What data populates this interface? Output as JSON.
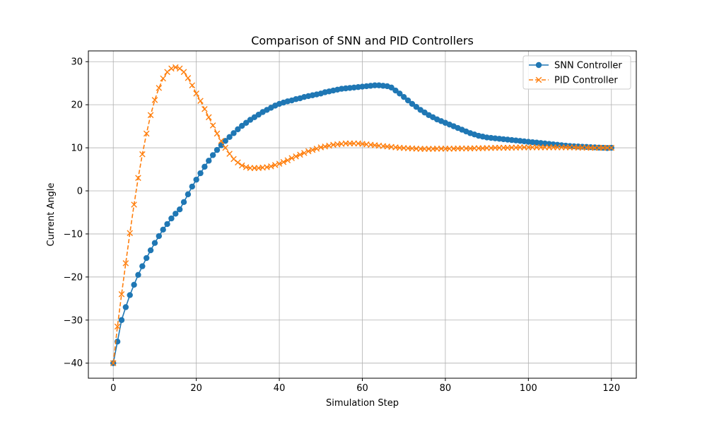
{
  "chart_data": {
    "type": "line",
    "title": "Comparison of SNN and PID Controllers",
    "xlabel": "Simulation Step",
    "ylabel": "Current Angle",
    "xlim": [
      -6,
      126
    ],
    "ylim": [
      -43.5,
      32.5
    ],
    "xticks": [
      0,
      20,
      40,
      60,
      80,
      100,
      120
    ],
    "yticks": [
      -40,
      -30,
      -20,
      -10,
      0,
      10,
      20,
      30
    ],
    "grid": true,
    "legend_position": "top-right",
    "x": [
      0,
      1,
      2,
      3,
      4,
      5,
      6,
      7,
      8,
      9,
      10,
      11,
      12,
      13,
      14,
      15,
      16,
      17,
      18,
      19,
      20,
      21,
      22,
      23,
      24,
      25,
      26,
      27,
      28,
      29,
      30,
      31,
      32,
      33,
      34,
      35,
      36,
      37,
      38,
      39,
      40,
      41,
      42,
      43,
      44,
      45,
      46,
      47,
      48,
      49,
      50,
      51,
      52,
      53,
      54,
      55,
      56,
      57,
      58,
      59,
      60,
      61,
      62,
      63,
      64,
      65,
      66,
      67,
      68,
      69,
      70,
      71,
      72,
      73,
      74,
      75,
      76,
      77,
      78,
      79,
      80,
      81,
      82,
      83,
      84,
      85,
      86,
      87,
      88,
      89,
      90,
      91,
      92,
      93,
      94,
      95,
      96,
      97,
      98,
      99,
      100,
      101,
      102,
      103,
      104,
      105,
      106,
      107,
      108,
      109,
      110,
      111,
      112,
      113,
      114,
      115,
      116,
      117,
      118,
      119,
      120
    ],
    "series": [
      {
        "name": "SNN Controller",
        "color": "#1f77b4",
        "marker": "circle",
        "linestyle": "solid",
        "values": [
          -40,
          -35,
          -30,
          -27,
          -24.2,
          -21.8,
          -19.5,
          -17.5,
          -15.6,
          -13.8,
          -12.1,
          -10.5,
          -9,
          -7.7,
          -6.4,
          -5.3,
          -4.3,
          -2.6,
          -0.8,
          1,
          2.6,
          4.1,
          5.6,
          7,
          8.3,
          9.5,
          10.6,
          11.6,
          12.5,
          13.4,
          14.3,
          15.1,
          15.8,
          16.5,
          17.1,
          17.7,
          18.3,
          18.8,
          19.3,
          19.8,
          20.2,
          20.5,
          20.8,
          21,
          21.3,
          21.5,
          21.8,
          22,
          22.2,
          22.4,
          22.6,
          22.9,
          23.1,
          23.3,
          23.5,
          23.7,
          23.8,
          23.9,
          24,
          24.1,
          24.2,
          24.3,
          24.4,
          24.5,
          24.5,
          24.4,
          24.3,
          24,
          23.3,
          22.6,
          21.8,
          21,
          20.2,
          19.5,
          18.8,
          18.2,
          17.6,
          17.1,
          16.6,
          16.2,
          15.8,
          15.4,
          15,
          14.6,
          14.2,
          13.8,
          13.4,
          13.1,
          12.8,
          12.6,
          12.4,
          12.3,
          12.2,
          12.1,
          12,
          11.9,
          11.8,
          11.7,
          11.6,
          11.5,
          11.4,
          11.3,
          11.2,
          11.1,
          11,
          10.9,
          10.8,
          10.7,
          10.6,
          10.5,
          10.4,
          10.35,
          10.3,
          10.25,
          10.2,
          10.15,
          10.1,
          10.05,
          10,
          9.95,
          10
        ]
      },
      {
        "name": "PID Controller",
        "color": "#ff7f0e",
        "marker": "x",
        "linestyle": "dashed",
        "values": [
          -40,
          -31.5,
          -24,
          -16.8,
          -9.8,
          -3.2,
          3,
          8.5,
          13.3,
          17.6,
          21.1,
          23.9,
          26.1,
          27.6,
          28.4,
          28.7,
          28.4,
          27.6,
          26.2,
          24.5,
          22.6,
          20.9,
          19,
          17.1,
          15.2,
          13.3,
          11.6,
          10,
          8.6,
          7.4,
          6.6,
          5.9,
          5.5,
          5.3,
          5.3,
          5.3,
          5.4,
          5.5,
          5.7,
          6,
          6.3,
          6.7,
          7.1,
          7.6,
          8,
          8.4,
          8.8,
          9.2,
          9.5,
          9.8,
          10.1,
          10.3,
          10.5,
          10.7,
          10.8,
          10.9,
          11,
          11,
          11,
          11,
          10.9,
          10.8,
          10.7,
          10.6,
          10.5,
          10.4,
          10.3,
          10.2,
          10.1,
          10,
          9.95,
          9.9,
          9.85,
          9.8,
          9.75,
          9.75,
          9.75,
          9.75,
          9.8,
          9.8,
          9.8,
          9.8,
          9.8,
          9.85,
          9.85,
          9.85,
          9.85,
          9.9,
          9.9,
          9.9,
          9.95,
          9.95,
          10,
          10,
          10,
          10,
          10.05,
          10.05,
          10.1,
          10.1,
          10.1,
          10.1,
          10.1,
          10.1,
          10.1,
          10.1,
          10.1,
          10.1,
          10.1,
          10.1,
          10.1,
          10.1,
          10.05,
          10.05,
          10.05,
          10,
          10,
          10,
          10,
          10,
          10
        ]
      }
    ]
  }
}
